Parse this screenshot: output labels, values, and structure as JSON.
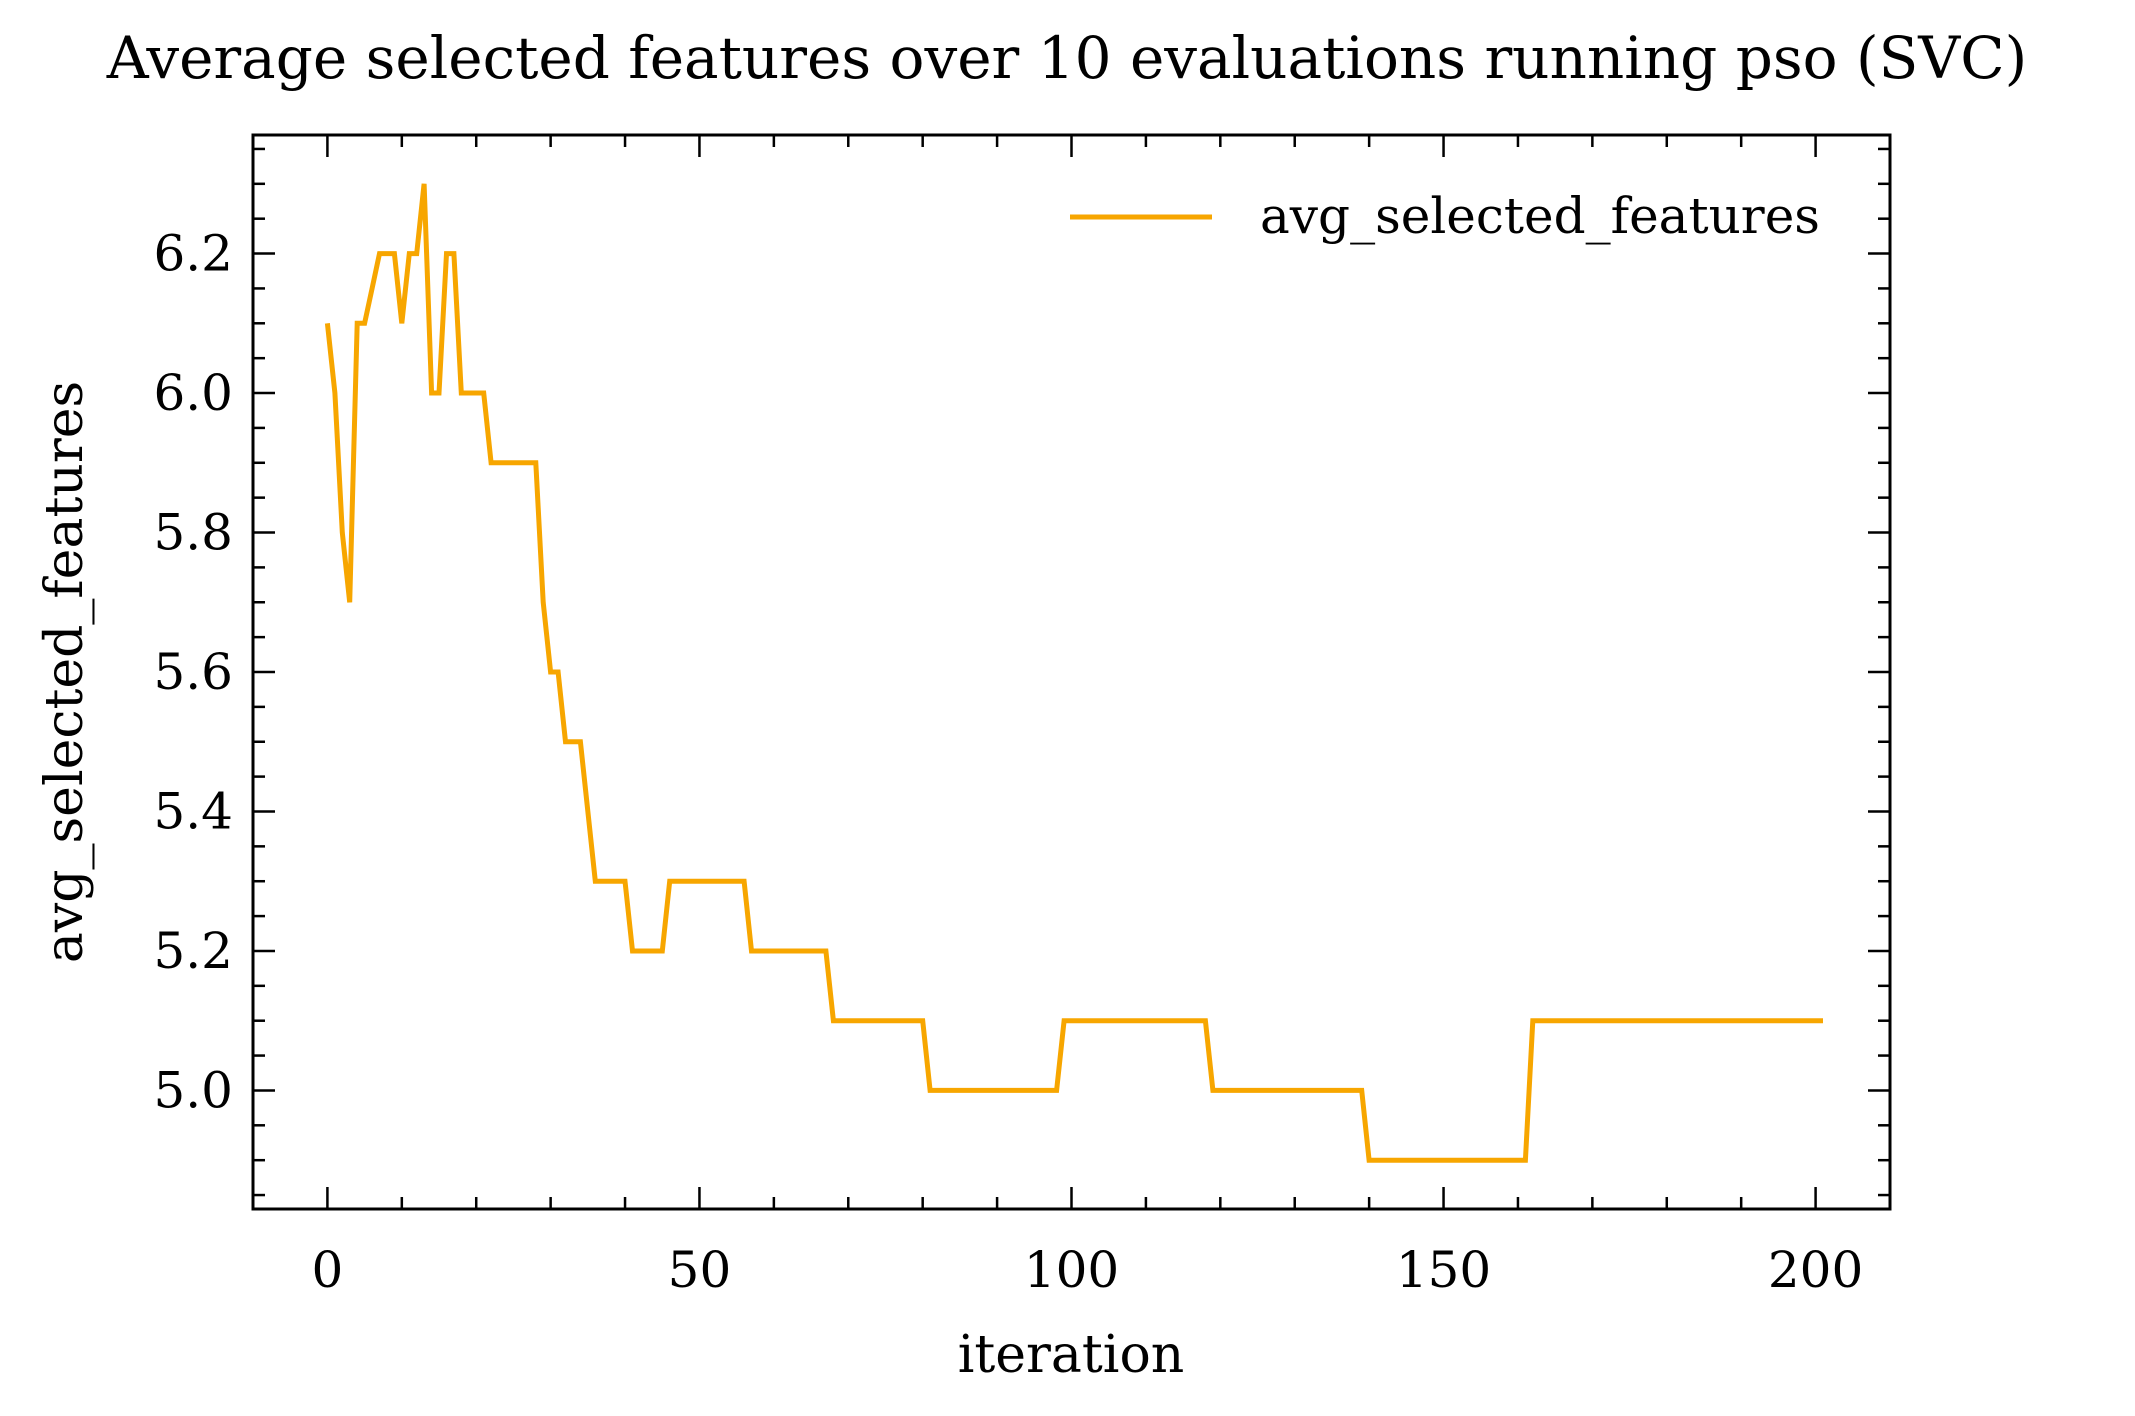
{
  "chart_data": {
    "type": "line",
    "title": "Average selected features over 10 evaluations running pso (SVC)",
    "xlabel": "iteration",
    "ylabel": "avg_selected_features",
    "xlim": [
      -10,
      210
    ],
    "ylim": [
      4.83,
      6.37
    ],
    "xticks": [
      0,
      50,
      100,
      150,
      200
    ],
    "xtick_labels": [
      "0",
      "50",
      "100",
      "150",
      "200"
    ],
    "yticks": [
      5.0,
      5.2,
      5.4,
      5.6,
      5.8,
      6.0,
      6.2
    ],
    "ytick_labels": [
      "5.0",
      "5.2",
      "5.4",
      "5.6",
      "5.8",
      "6.0",
      "6.2"
    ],
    "x_minor_step": 10,
    "y_minor_step": 0.05,
    "grid": false,
    "legend_position": "top-right",
    "series": [
      {
        "name": "avg_selected_features",
        "color": "#f7a600",
        "points": [
          [
            0,
            6.1
          ],
          [
            1,
            6.0
          ],
          [
            2,
            5.8
          ],
          [
            3,
            5.7
          ],
          [
            4,
            6.1
          ],
          [
            5,
            6.1
          ],
          [
            6,
            6.15
          ],
          [
            7,
            6.2
          ],
          [
            8,
            6.2
          ],
          [
            9,
            6.2
          ],
          [
            10,
            6.1
          ],
          [
            11,
            6.2
          ],
          [
            12,
            6.2
          ],
          [
            13,
            6.3
          ],
          [
            14,
            6.0
          ],
          [
            15,
            6.0
          ],
          [
            16,
            6.2
          ],
          [
            17,
            6.2
          ],
          [
            18,
            6.0
          ],
          [
            21,
            6.0
          ],
          [
            22,
            5.9
          ],
          [
            28,
            5.9
          ],
          [
            29,
            5.7
          ],
          [
            30,
            5.6
          ],
          [
            31,
            5.6
          ],
          [
            32,
            5.5
          ],
          [
            34,
            5.5
          ],
          [
            36,
            5.3
          ],
          [
            40,
            5.3
          ],
          [
            41,
            5.2
          ],
          [
            45,
            5.2
          ],
          [
            46,
            5.3
          ],
          [
            56,
            5.3
          ],
          [
            57,
            5.2
          ],
          [
            67,
            5.2
          ],
          [
            68,
            5.1
          ],
          [
            80,
            5.1
          ],
          [
            81,
            5.0
          ],
          [
            98,
            5.0
          ],
          [
            99,
            5.1
          ],
          [
            118,
            5.1
          ],
          [
            119,
            5.0
          ],
          [
            139,
            5.0
          ],
          [
            140,
            4.9
          ],
          [
            161,
            4.9
          ],
          [
            162,
            5.1
          ],
          [
            201,
            5.1
          ]
        ]
      }
    ]
  }
}
